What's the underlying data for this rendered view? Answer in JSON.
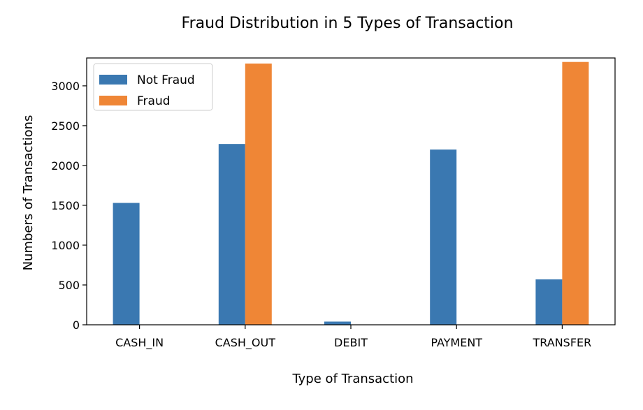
{
  "chart_data": {
    "type": "bar",
    "title": "Fraud Distribution in 5 Types of Transaction",
    "xlabel": "Type of Transaction",
    "ylabel": "Numbers of Transactions",
    "categories": [
      "CASH_IN",
      "CASH_OUT",
      "DEBIT",
      "PAYMENT",
      "TRANSFER"
    ],
    "series": [
      {
        "name": "Not Fraud",
        "values": [
          1530,
          2270,
          40,
          2200,
          570
        ]
      },
      {
        "name": "Fraud",
        "values": [
          0,
          3280,
          0,
          0,
          3300
        ]
      }
    ],
    "ylim": [
      0,
      3350
    ],
    "yticks": [
      0,
      500,
      1000,
      1500,
      2000,
      2500,
      3000
    ],
    "legend_position": "top-left",
    "grid": false,
    "colors": {
      "Not Fraud": "#3a78b1",
      "Fraud": "#ef8636"
    }
  }
}
